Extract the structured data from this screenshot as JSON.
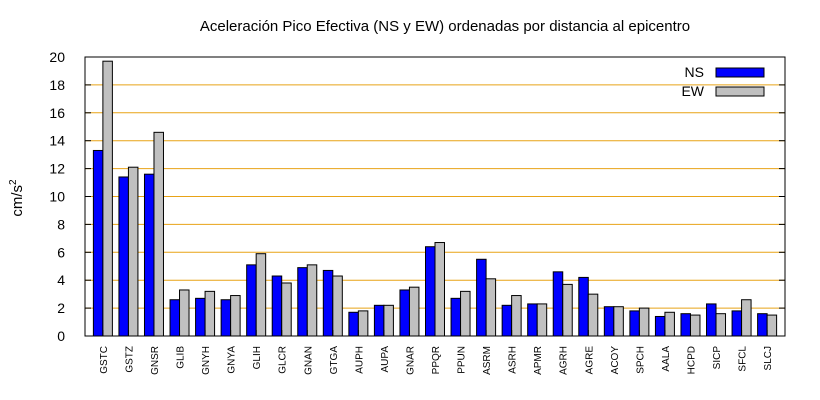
{
  "chart_data": {
    "type": "bar",
    "title": "Aceleración Pico Efectiva (NS y EW) ordenadas por distancia al epicentro",
    "ylabel_base": "cm/s",
    "ylabel_sup": "2",
    "xlabel": "",
    "ylim": [
      0,
      20
    ],
    "yticks": [
      0,
      2,
      4,
      6,
      8,
      10,
      12,
      14,
      16,
      18,
      20
    ],
    "grid": "horizontal",
    "legend_position": "top-right",
    "categories": [
      "GSTC",
      "GSTZ",
      "GNSR",
      "GLIB",
      "GNYH",
      "GNYA",
      "GLIH",
      "GLCR",
      "GNAN",
      "GTGA",
      "AUPH",
      "AUPA",
      "GNAR",
      "PPQR",
      "PPUN",
      "ASRM",
      "ASRH",
      "APMR",
      "AGRH",
      "AGRE",
      "ACOY",
      "SPCH",
      "AALA",
      "HCPD",
      "SICP",
      "SFCL",
      "SLCJ"
    ],
    "series": [
      {
        "name": "NS",
        "color": "#0000ff",
        "values": [
          13.3,
          11.4,
          11.6,
          2.6,
          2.7,
          2.6,
          5.1,
          4.3,
          4.9,
          4.7,
          1.7,
          2.2,
          3.3,
          6.4,
          2.7,
          5.5,
          2.2,
          2.3,
          4.6,
          4.2,
          2.1,
          1.8,
          1.4,
          1.6,
          2.3,
          1.8,
          1.6
        ]
      },
      {
        "name": "EW",
        "color": "#c0c0c0",
        "values": [
          19.7,
          12.1,
          14.6,
          3.3,
          3.2,
          2.9,
          5.9,
          3.8,
          5.1,
          4.3,
          1.8,
          2.2,
          3.5,
          6.7,
          3.2,
          4.1,
          2.9,
          2.3,
          3.7,
          3.0,
          2.1,
          2.0,
          1.7,
          1.5,
          1.6,
          2.6,
          1.5
        ]
      }
    ]
  }
}
